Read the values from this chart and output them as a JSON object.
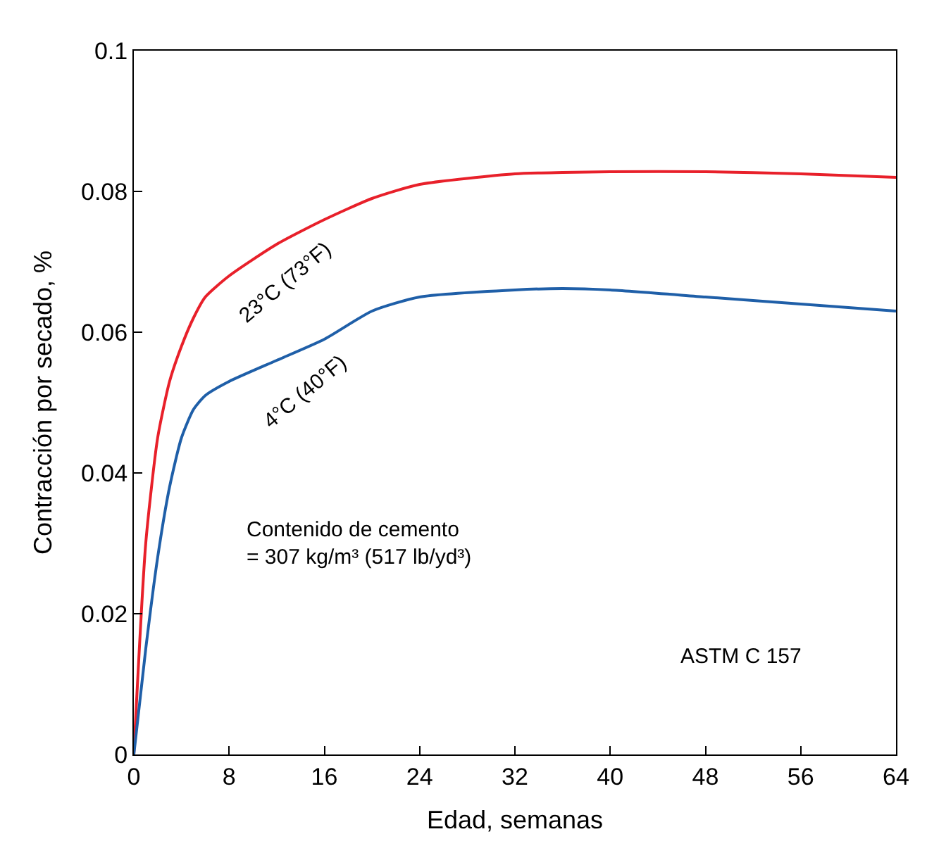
{
  "chart_data": {
    "type": "line",
    "xlabel": "Edad, semanas",
    "ylabel": "Contracción por secado, %",
    "x": [
      0,
      1,
      2,
      3,
      4,
      5,
      6,
      8,
      12,
      16,
      20,
      24,
      32,
      36,
      40,
      48,
      56,
      64
    ],
    "series": [
      {
        "color": "#e8202a",
        "values": [
          0,
          0.03,
          0.045,
          0.053,
          0.058,
          0.062,
          0.065,
          0.068,
          0.0725,
          0.076,
          0.079,
          0.081,
          0.0825,
          0.0827,
          0.0828,
          0.0828,
          0.0825,
          0.082
        ]
      },
      {
        "color": "#1f5fa8",
        "values": [
          0,
          0.015,
          0.028,
          0.038,
          0.045,
          0.049,
          0.051,
          0.053,
          0.056,
          0.059,
          0.063,
          0.065,
          0.066,
          0.0662,
          0.066,
          0.065,
          0.064,
          0.063
        ]
      }
    ],
    "annotations": [
      "23°C (73°F)",
      "4°C (40°F)",
      "Contenido de cemento\n= 307 kg/m³ (517 lb/yd³)",
      "ASTM C 157"
    ],
    "xlim": [
      0,
      64
    ],
    "xticks": [
      0,
      8,
      16,
      24,
      32,
      40,
      48,
      56,
      64
    ],
    "ylim": [
      0,
      0.1
    ],
    "yticks": [
      0,
      0.02,
      0.04,
      0.06,
      0.08,
      0.1
    ],
    "marker": "none",
    "line_style": "solid"
  }
}
